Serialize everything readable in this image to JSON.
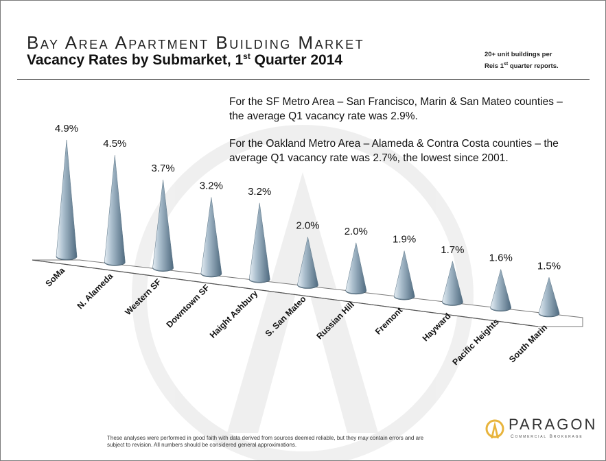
{
  "header": {
    "title": "Bay Area Apartment Building Market",
    "subtitle_main": "Vacancy Rates by Submarket, 1",
    "subtitle_sup": "st",
    "subtitle_end": " Quarter 2014",
    "note_line1": "20+ unit buildings per",
    "note_line2_start": "Reis 1",
    "note_line2_sup": "st",
    "note_line2_end": " quarter reports."
  },
  "annotations": {
    "sf_metro": "For the SF Metro Area – San Francisco, Marin & San Mateo counties – the average Q1 vacancy rate was 2.9%.",
    "oakland_metro": "For the Oakland Metro Area – Alameda & Contra Costa counties – the average Q1 vacancy rate was 2.7%, the lowest since 2001."
  },
  "footer": {
    "disclaimer": "These analyses were performed in good faith with data derived from sources deemed reliable, but they may contain errors and are subject to revision. All numbers should be considered general approximations."
  },
  "logo": {
    "name": "PARAGON",
    "tagline": "Commercial Brokerage"
  },
  "colors": {
    "cone_light": "#e6eef4",
    "cone_mid": "#a9bdcc",
    "cone_dark": "#4f6a7f",
    "logo_gold": "#e8b43c"
  },
  "chart_data": {
    "type": "bar",
    "style": "3d-cone",
    "categories": [
      "SoMa",
      "N. Alameda",
      "Western SF",
      "Downtown SF",
      "Haight Ashbury",
      "S. San Mateo",
      "Russian Hill",
      "Fremont",
      "Hayward",
      "Pacific Heights",
      "South Marin"
    ],
    "values": [
      4.9,
      4.5,
      3.7,
      3.2,
      3.2,
      2.0,
      2.0,
      1.9,
      1.7,
      1.6,
      1.5
    ],
    "value_labels": [
      "4.9%",
      "4.5%",
      "3.7%",
      "3.2%",
      "3.2%",
      "2.0%",
      "2.0%",
      "1.9%",
      "1.7%",
      "1.6%",
      "1.5%"
    ],
    "unit": "%",
    "grid": false,
    "legend": "none"
  }
}
